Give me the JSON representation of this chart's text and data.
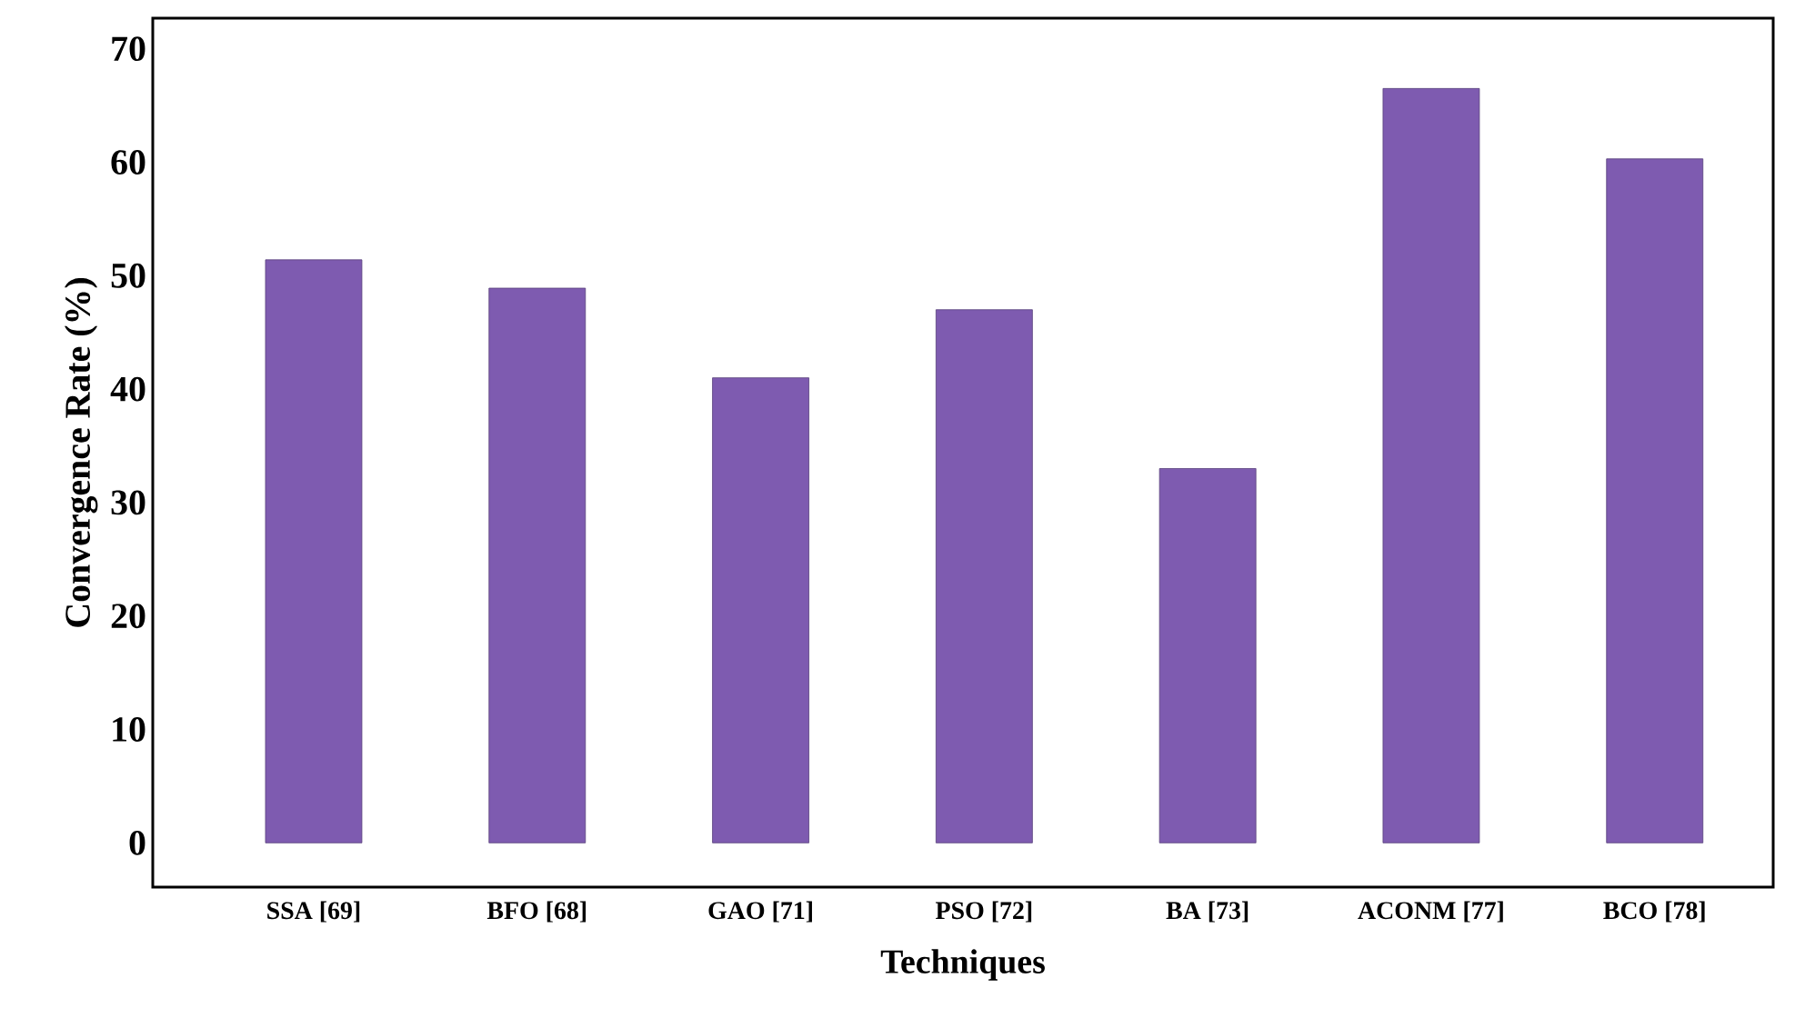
{
  "chart_data": {
    "type": "bar",
    "xlabel": "Techniques",
    "ylabel": "Convergence Rate (%)",
    "categories": [
      "SSA [69]",
      "BFO [68]",
      "GAO [71]",
      "PSO [72]",
      "BA [73]",
      "ACONM [77]",
      "BCO [78]"
    ],
    "values": [
      51.4,
      48.9,
      41,
      47,
      33,
      66.5,
      60.3
    ],
    "color": "#7e5bb0",
    "ylim": [
      -3.9,
      72.7
    ],
    "yticks": [
      0,
      10,
      20,
      30,
      40,
      50,
      60,
      70
    ]
  }
}
